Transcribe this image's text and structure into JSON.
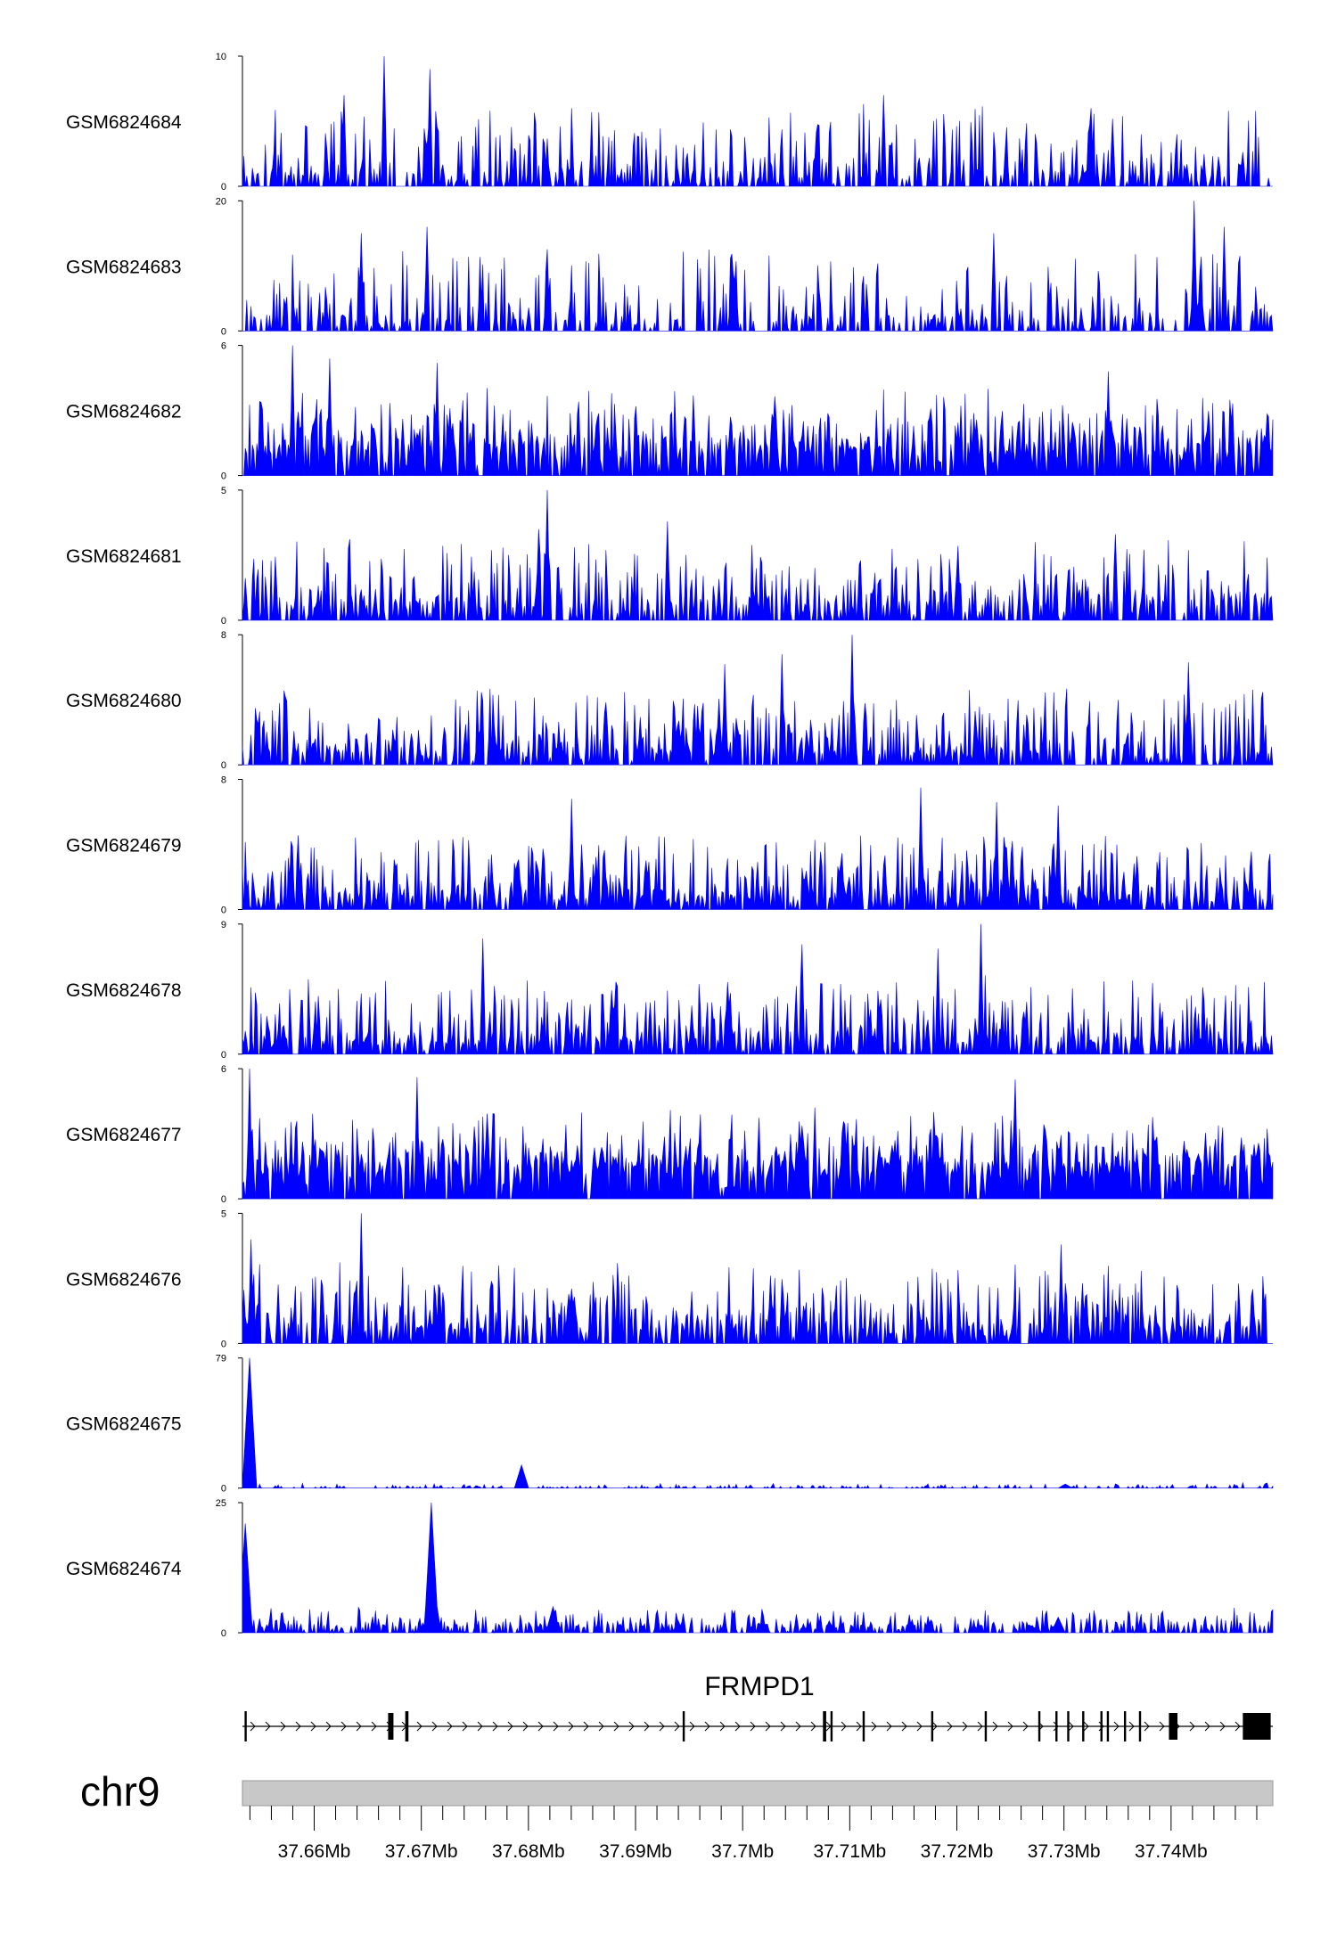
{
  "chart_data": {
    "type": "area",
    "color": "#0000ff",
    "chromosome": "chr9",
    "gene": {
      "name": "FRMPD1",
      "strand": "+",
      "start_mb": 37.6533,
      "end_mb": 37.7495
    },
    "x_axis": {
      "unit": "Mb",
      "range_mb": [
        37.6533,
        37.7495
      ],
      "tick_labels": [
        "37.66Mb",
        "37.67Mb",
        "37.68Mb",
        "37.69Mb",
        "37.7Mb",
        "37.71Mb",
        "37.72Mb",
        "37.73Mb",
        "37.74Mb"
      ],
      "tick_values": [
        37.66,
        37.67,
        37.68,
        37.69,
        37.7,
        37.71,
        37.72,
        37.73,
        37.74
      ]
    },
    "exons_mb": [
      [
        37.6535,
        37.6537
      ],
      [
        37.6669,
        37.6674
      ],
      [
        37.6685,
        37.6688
      ],
      [
        37.6944,
        37.6946
      ],
      [
        37.7075,
        37.7078
      ],
      [
        37.7082,
        37.7084
      ],
      [
        37.7112,
        37.7114
      ],
      [
        37.7176,
        37.7178
      ],
      [
        37.7226,
        37.7228
      ],
      [
        37.7276,
        37.7278
      ],
      [
        37.7292,
        37.7294
      ],
      [
        37.7303,
        37.7305
      ],
      [
        37.7317,
        37.7319
      ],
      [
        37.7334,
        37.7336
      ],
      [
        37.734,
        37.7342
      ],
      [
        37.7356,
        37.7358
      ],
      [
        37.737,
        37.7372
      ],
      [
        37.7398,
        37.7406
      ],
      [
        37.7467,
        37.7493
      ]
    ],
    "tracks": [
      {
        "name": "GSM6824684",
        "ylim": [
          0,
          10
        ],
        "max_label": "10",
        "min_label": "0",
        "baseline": 0.5,
        "spikiness": 1.0,
        "density": 0.55,
        "peaks": [
          [
            37.6665,
            10
          ],
          [
            37.6708,
            9
          ],
          [
            37.7132,
            7
          ],
          [
            37.6628,
            7
          ],
          [
            37.7325,
            6
          ]
        ]
      },
      {
        "name": "GSM6824683",
        "ylim": [
          0,
          20
        ],
        "max_label": "20",
        "min_label": "0",
        "baseline": 1.0,
        "spikiness": 1.0,
        "density": 0.5,
        "peaks": [
          [
            37.7422,
            20
          ],
          [
            37.6705,
            16
          ],
          [
            37.6644,
            15
          ],
          [
            37.745,
            16
          ],
          [
            37.7234,
            15
          ]
        ]
      },
      {
        "name": "GSM6824682",
        "ylim": [
          0,
          6
        ],
        "max_label": "6",
        "min_label": "0",
        "baseline": 0.8,
        "spikiness": 0.8,
        "density": 0.8,
        "peaks": [
          [
            37.658,
            6
          ],
          [
            37.6615,
            5.4
          ],
          [
            37.7342,
            4.8
          ],
          [
            37.6715,
            5.2
          ]
        ]
      },
      {
        "name": "GSM6824681",
        "ylim": [
          0,
          5
        ],
        "max_label": "5",
        "min_label": "0",
        "baseline": 0.4,
        "spikiness": 0.9,
        "density": 0.6,
        "peaks": [
          [
            37.6817,
            5
          ],
          [
            37.693,
            3.8
          ],
          [
            37.681,
            3.5
          ],
          [
            37.7348,
            3.3
          ]
        ]
      },
      {
        "name": "GSM6824680",
        "ylim": [
          0,
          8
        ],
        "max_label": "8",
        "min_label": "0",
        "baseline": 0.5,
        "spikiness": 0.9,
        "density": 0.65,
        "peaks": [
          [
            37.7102,
            8
          ],
          [
            37.7037,
            6.8
          ],
          [
            37.7416,
            6.3
          ],
          [
            37.6983,
            6.2
          ]
        ]
      },
      {
        "name": "GSM6824679",
        "ylim": [
          0,
          8
        ],
        "max_label": "8",
        "min_label": "0",
        "baseline": 0.5,
        "spikiness": 0.9,
        "density": 0.7,
        "peaks": [
          [
            37.7166,
            7.5
          ],
          [
            37.684,
            6.8
          ],
          [
            37.7237,
            6.6
          ],
          [
            37.7295,
            6.4
          ]
        ]
      },
      {
        "name": "GSM6824678",
        "ylim": [
          0,
          9
        ],
        "max_label": "9",
        "min_label": "0",
        "baseline": 0.6,
        "spikiness": 0.9,
        "density": 0.7,
        "peaks": [
          [
            37.7222,
            9
          ],
          [
            37.6758,
            8
          ],
          [
            37.7055,
            7.6
          ],
          [
            37.7183,
            7.3
          ]
        ]
      },
      {
        "name": "GSM6824677",
        "ylim": [
          0,
          6
        ],
        "max_label": "6",
        "min_label": "0",
        "baseline": 1.0,
        "spikiness": 0.7,
        "density": 0.85,
        "peaks": [
          [
            37.654,
            6
          ],
          [
            37.7255,
            5.5
          ],
          [
            37.6696,
            5.6
          ]
        ]
      },
      {
        "name": "GSM6824676",
        "ylim": [
          0,
          5
        ],
        "max_label": "5",
        "min_label": "0",
        "baseline": 0.4,
        "spikiness": 0.9,
        "density": 0.65,
        "peaks": [
          [
            37.6644,
            5
          ],
          [
            37.6541,
            4
          ],
          [
            37.7297,
            3.8
          ]
        ]
      },
      {
        "name": "GSM6824675",
        "ylim": [
          0,
          79
        ],
        "max_label": "79",
        "min_label": "0",
        "baseline": 0.6,
        "spikiness": 0.05,
        "density": 0.3,
        "peaks": [
          [
            37.654,
            79
          ],
          [
            37.6793,
            14
          ],
          [
            37.7301,
            2.5
          ]
        ]
      },
      {
        "name": "GSM6824674",
        "ylim": [
          0,
          25
        ],
        "max_label": "25",
        "min_label": "0",
        "baseline": 0.8,
        "spikiness": 0.25,
        "density": 0.6,
        "peaks": [
          [
            37.6536,
            21
          ],
          [
            37.671,
            25
          ],
          [
            37.6823,
            5
          ],
          [
            37.7295,
            3
          ]
        ]
      }
    ]
  }
}
